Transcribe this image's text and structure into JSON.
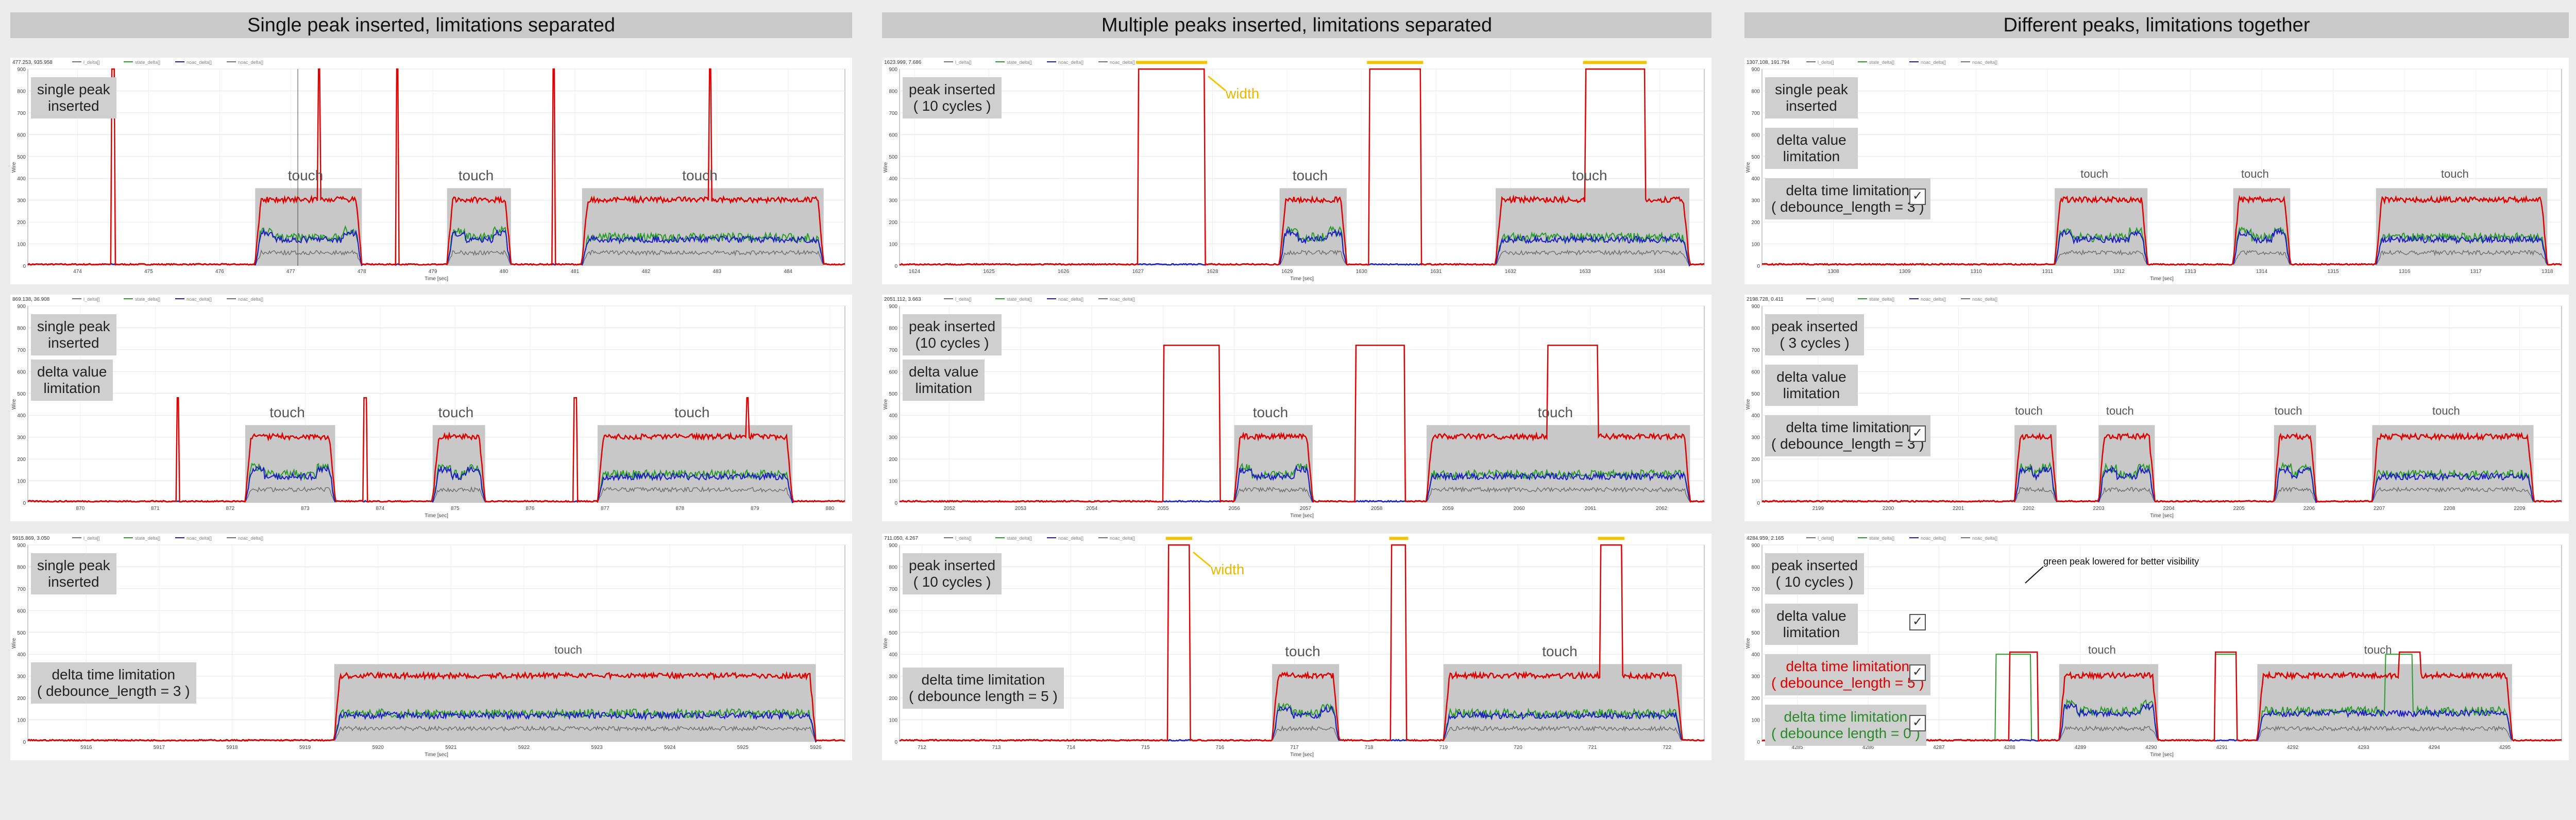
{
  "legend_items": [
    "l_delta[]",
    "state_delta[]",
    "noac_delta[]",
    "noac_delta[]"
  ],
  "y_axis_label": "Wire",
  "x_axis_label": "Time [sec]",
  "colors": {
    "red": "#e00000",
    "green": "#2a9a2a",
    "blue": "#1a1acc",
    "gray": "#707070",
    "highlight": "#c8c8c8",
    "yellow": "#f5c400"
  },
  "columns": [
    {
      "header": "Single peak inserted, limitations separated",
      "panels": [
        {
          "readout": "477.253, 935.958",
          "xticks": [
            "474",
            "475",
            "476",
            "477",
            "478",
            "479",
            "480",
            "481",
            "482",
            "483",
            "484"
          ],
          "x_range": [
            473.3,
            484.8
          ],
          "labels": [
            {
              "text": "single peak\ninserted",
              "style": ""
            }
          ],
          "annotations": [
            "touch",
            "touch",
            "touch"
          ],
          "touch_regions": [
            [
              476.5,
              478.0
            ],
            [
              479.2,
              480.1
            ],
            [
              481.1,
              484.5
            ]
          ],
          "peaks": [
            474.5,
            477.4,
            478.5,
            480.7,
            482.9
          ],
          "cursor_x": 477.1
        },
        {
          "readout": "869.138, 36.908",
          "xticks": [
            "870",
            "871",
            "872",
            "873",
            "874",
            "875",
            "876",
            "877",
            "878",
            "879",
            "880"
          ],
          "x_range": [
            869.3,
            880.2
          ],
          "labels": [
            {
              "text": "single peak\ninserted",
              "style": ""
            },
            {
              "text": "delta value\nlimitation",
              "style": ""
            }
          ],
          "annotations": [
            "touch",
            "touch",
            "touch"
          ],
          "touch_regions": [
            [
              872.2,
              873.4
            ],
            [
              874.7,
              875.4
            ],
            [
              876.9,
              879.5
            ]
          ],
          "peaks": [
            871.3,
            873.8,
            876.6,
            878.9
          ]
        },
        {
          "readout": "5915.869, 3.050",
          "xticks": [
            "5916",
            "5917",
            "5918",
            "5919",
            "5920",
            "5921",
            "5922",
            "5923",
            "5924",
            "5925",
            "5926"
          ],
          "x_range": [
            5915.2,
            5926.4
          ],
          "labels": [
            {
              "text": "single peak\ninserted",
              "style": ""
            },
            {
              "text": "delta time limitation\n( debounce_length = 3 )",
              "style": ""
            }
          ],
          "annotations": [
            "touch"
          ],
          "touch_regions": [
            [
              5919.4,
              5926.0
            ]
          ],
          "peaks": []
        }
      ]
    },
    {
      "header": "Multiple peaks inserted, limitations separated",
      "panels": [
        {
          "readout": "1623.999, 7.686",
          "xticks": [
            "1624",
            "1625",
            "1626",
            "1627",
            "1628",
            "1629",
            "1630",
            "1631",
            "1632",
            "1633",
            "1634"
          ],
          "x_range": [
            1623.8,
            1634.6
          ],
          "labels": [
            {
              "text": "peak inserted\n( 10 cycles )",
              "style": ""
            }
          ],
          "annotations": [
            "width",
            "touch",
            "touch"
          ],
          "touch_regions": [
            [
              1628.9,
              1629.8
            ],
            [
              1631.8,
              1634.4
            ]
          ],
          "wide_peaks": [
            [
              1627.0,
              1627.9
            ],
            [
              1630.1,
              1630.8
            ],
            [
              1633.0,
              1633.8
            ]
          ]
        },
        {
          "readout": "2051.112, 3.663",
          "xticks": [
            "2052",
            "2053",
            "2054",
            "2055",
            "2056",
            "2057",
            "2058",
            "2059",
            "2060",
            "2061",
            "2062"
          ],
          "x_range": [
            2051.3,
            2062.6
          ],
          "labels": [
            {
              "text": "peak inserted\n(10 cycles )",
              "style": ""
            },
            {
              "text": "delta value\nlimitation",
              "style": ""
            }
          ],
          "annotations": [
            "touch",
            "touch"
          ],
          "touch_regions": [
            [
              2056.0,
              2057.1
            ],
            [
              2058.7,
              2062.4
            ]
          ],
          "wide_peaks": [
            [
              2055.0,
              2055.8
            ],
            [
              2057.7,
              2058.4
            ],
            [
              2060.4,
              2061.1
            ]
          ]
        },
        {
          "readout": "711.050, 4.267",
          "xticks": [
            "712",
            "713",
            "714",
            "715",
            "716",
            "717",
            "718",
            "719",
            "720",
            "721",
            "722"
          ],
          "x_range": [
            711.7,
            722.5
          ],
          "labels": [
            {
              "text": "peak inserted\n( 10 cycles )",
              "style": ""
            },
            {
              "text": "delta time limitation\n( debounce length = 5 )",
              "style": ""
            }
          ],
          "annotations": [
            "width",
            "touch",
            "touch"
          ],
          "touch_regions": [
            [
              716.7,
              717.6
            ],
            [
              719.0,
              722.2
            ]
          ],
          "wide_peaks": [
            [
              715.3,
              715.6
            ],
            [
              718.3,
              718.5
            ],
            [
              721.1,
              721.4
            ]
          ]
        }
      ]
    },
    {
      "header": "Different peaks, limitations together",
      "panels": [
        {
          "readout": "1307.108, 191.794",
          "xticks": [
            "1308",
            "1309",
            "1310",
            "1311",
            "1312",
            "1313",
            "1314",
            "1315",
            "1316",
            "1317",
            "1318"
          ],
          "x_range": [
            1307.0,
            1318.2
          ],
          "labels": [
            {
              "text": "single peak\ninserted",
              "style": ""
            },
            {
              "text": "delta value\nlimitation",
              "style": ""
            },
            {
              "text": "delta time limitation\n( debounce_length = 3 )",
              "style": ""
            }
          ],
          "annotations": [
            "touch",
            "touch",
            "touch"
          ],
          "touch_regions": [
            [
              1311.1,
              1312.4
            ],
            [
              1313.6,
              1314.4
            ],
            [
              1315.6,
              1318.0
            ]
          ],
          "checks": 1
        },
        {
          "readout": "2198.728, 0.411",
          "xticks": [
            "2199",
            "2200",
            "2201",
            "2202",
            "2203",
            "2204",
            "2205",
            "2206",
            "2207",
            "2208",
            "2209"
          ],
          "x_range": [
            2198.2,
            2209.6
          ],
          "labels": [
            {
              "text": "peak inserted\n( 3 cycles )",
              "style": ""
            },
            {
              "text": "delta value\nlimitation",
              "style": ""
            },
            {
              "text": "delta time limitation\n( debounce_length = 3 )",
              "style": ""
            }
          ],
          "annotations": [
            "touch",
            "touch",
            "touch",
            "touch"
          ],
          "touch_regions": [
            [
              2201.8,
              2202.4
            ],
            [
              2203.0,
              2203.8
            ],
            [
              2205.5,
              2206.1
            ],
            [
              2206.9,
              2209.2
            ]
          ],
          "checks": 1
        },
        {
          "readout": "4284.959, 2.165",
          "xticks": [
            "4285",
            "4286",
            "4287",
            "4288",
            "4289",
            "4290",
            "4291",
            "4292",
            "4293",
            "4294",
            "4295"
          ],
          "x_range": [
            4284.5,
            4295.8
          ],
          "labels": [
            {
              "text": "peak inserted\n( 10 cycles )",
              "style": ""
            },
            {
              "text": "delta value\nlimitation",
              "style": ""
            },
            {
              "text": "delta time limitation\n( debounce_length = 5 )",
              "style": "red"
            },
            {
              "text": "delta time limitation\n( debounce length = 0 )",
              "style": "green"
            }
          ],
          "annotations": [
            "touch",
            "touch",
            "green peak lowered for better visibility"
          ],
          "touch_regions": [
            [
              4288.7,
              4290.1
            ],
            [
              4291.5,
              4295.1
            ]
          ],
          "checks": 3
        }
      ]
    }
  ],
  "chart_data": [
    {
      "type": "line",
      "title": "Single peak inserted, limitations separated",
      "series": [
        {
          "name": "l_delta[]"
        },
        {
          "name": "state_delta[]"
        },
        {
          "name": "noac_delta[]"
        },
        {
          "name": "noac_delta[]"
        }
      ],
      "ylim": [
        0,
        900
      ],
      "ylabel": "Wire",
      "xlabel": "Time [sec]"
    },
    {
      "type": "line",
      "title": "Multiple peaks inserted, limitations separated",
      "series": [
        {
          "name": "l_delta[]"
        },
        {
          "name": "state_delta[]"
        },
        {
          "name": "noac_delta[]"
        },
        {
          "name": "noac_delta[]"
        }
      ],
      "ylim": [
        0,
        900
      ],
      "ylabel": "Wire",
      "xlabel": "Time [sec]"
    },
    {
      "type": "line",
      "title": "Different peaks, limitations together",
      "series": [
        {
          "name": "l_delta[]"
        },
        {
          "name": "state_delta[]"
        },
        {
          "name": "noac_delta[]"
        },
        {
          "name": "noac_delta[]"
        }
      ],
      "ylim": [
        0,
        900
      ],
      "ylabel": "Wire",
      "xlabel": "Time [sec]"
    }
  ]
}
